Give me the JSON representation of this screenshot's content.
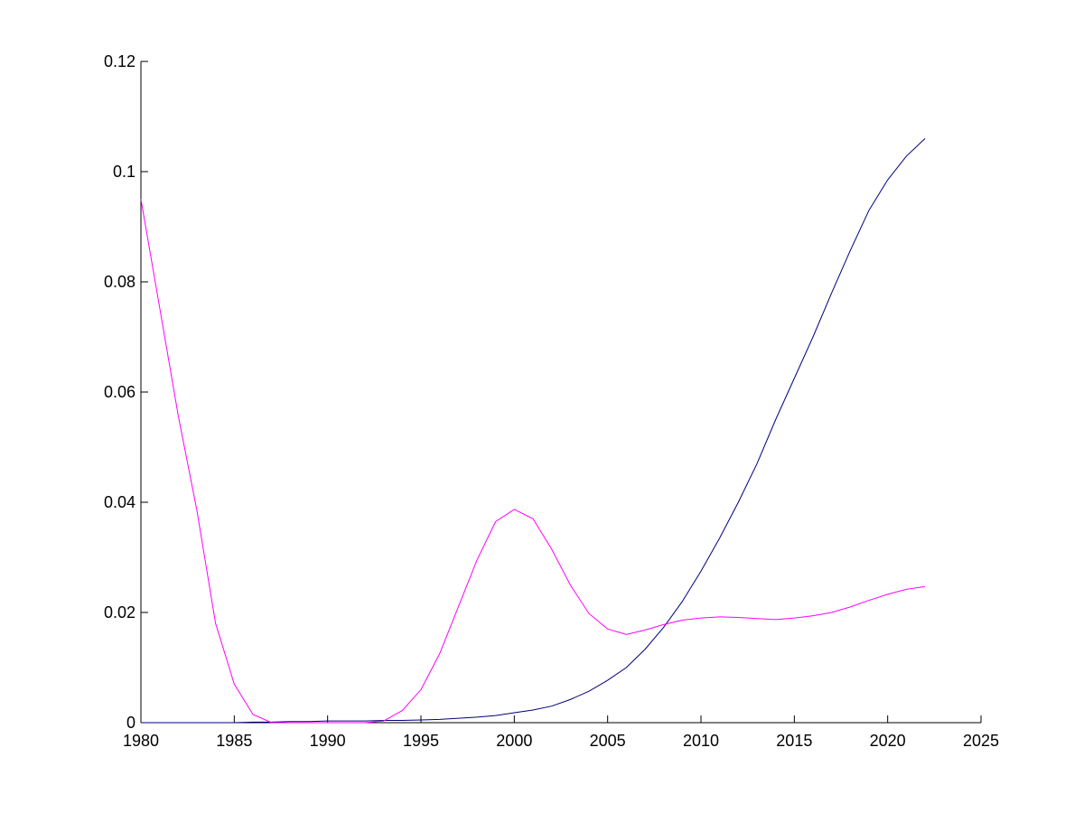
{
  "chart_data": {
    "type": "line",
    "x": [
      1980,
      1981,
      1982,
      1983,
      1984,
      1985,
      1986,
      1987,
      1988,
      1989,
      1990,
      1991,
      1992,
      1993,
      1994,
      1995,
      1996,
      1997,
      1998,
      1999,
      2000,
      2001,
      2002,
      2003,
      2004,
      2005,
      2006,
      2007,
      2008,
      2009,
      2010,
      2011,
      2012,
      2013,
      2014,
      2015,
      2016,
      2017,
      2018,
      2019,
      2020,
      2021,
      2022
    ],
    "series": [
      {
        "color": "#00007f",
        "values": [
          0,
          0,
          0,
          0,
          0,
          0,
          0.0001,
          0.0001,
          0.0002,
          0.0002,
          0.0003,
          0.0003,
          0.0003,
          0.0004,
          0.0004,
          0.0005,
          0.0006,
          0.0008,
          0.001,
          0.0013,
          0.0018,
          0.0023,
          0.003,
          0.0042,
          0.0057,
          0.0077,
          0.01,
          0.0133,
          0.0173,
          0.022,
          0.0275,
          0.0335,
          0.04,
          0.047,
          0.055,
          0.0625,
          0.07,
          0.078,
          0.0857,
          0.093,
          0.0985,
          0.1028,
          0.106
        ]
      },
      {
        "color": "#ff00ff",
        "values": [
          0.095,
          0.0754,
          0.0557,
          0.0385,
          0.018,
          0.007,
          0.0015,
          0,
          0,
          0,
          0,
          0,
          0,
          0.0003,
          0.0022,
          0.006,
          0.0125,
          0.021,
          0.0295,
          0.0365,
          0.0387,
          0.037,
          0.0315,
          0.025,
          0.0198,
          0.017,
          0.016,
          0.0168,
          0.0178,
          0.0186,
          0.019,
          0.0192,
          0.0191,
          0.0189,
          0.0187,
          0.019,
          0.0194,
          0.02,
          0.021,
          0.0222,
          0.0233,
          0.0242,
          0.0247
        ]
      }
    ],
    "xlim": [
      1980,
      2025
    ],
    "xticks": [
      1980,
      1985,
      1990,
      1995,
      2000,
      2005,
      2010,
      2015,
      2020,
      2025
    ],
    "ylim": [
      0,
      0.12
    ],
    "yticks": [
      0,
      0.02,
      0.04,
      0.06,
      0.08,
      0.1,
      0.12
    ],
    "grid": false
  }
}
